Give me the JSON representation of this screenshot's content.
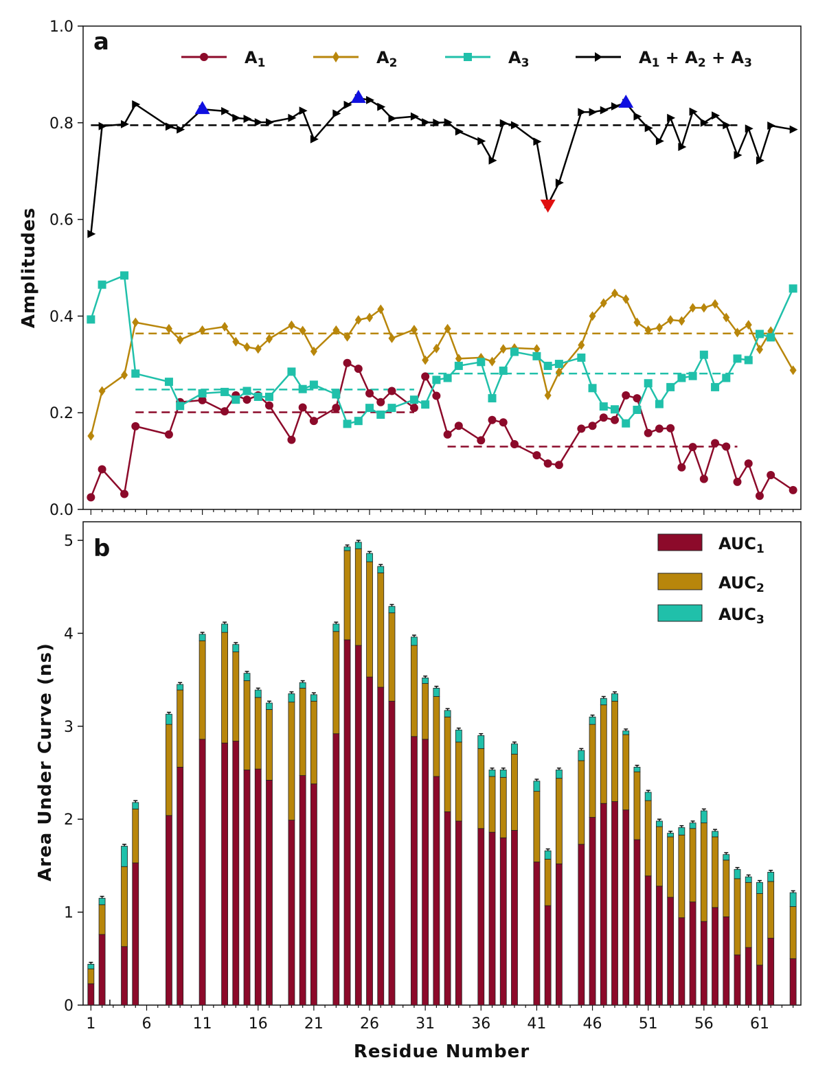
{
  "chart_data": [
    {
      "panel": "a",
      "type": "line",
      "ylabel": "Amplitudes",
      "ylim": [
        0.0,
        1.0
      ],
      "yticks": [
        "0.0",
        "0.2",
        "0.4",
        "0.6",
        "0.8",
        "1.0"
      ],
      "legend_position": "top",
      "legend_labels": [
        "A",
        "A",
        "A",
        "A + A + A"
      ],
      "legend_subscripts": [
        "1",
        "2",
        "3"
      ],
      "x": [
        1,
        2,
        4,
        5,
        8,
        9,
        11,
        13,
        14,
        15,
        16,
        17,
        19,
        20,
        21,
        23,
        24,
        25,
        26,
        27,
        28,
        30,
        31,
        32,
        33,
        34,
        36,
        37,
        38,
        39,
        41,
        42,
        43,
        45,
        46,
        47,
        48,
        49,
        50,
        51,
        52,
        53,
        54,
        55,
        56,
        57,
        58,
        59,
        60,
        61,
        62,
        64
      ],
      "series": [
        {
          "name": "A1",
          "color": "#8c0a2a",
          "marker": "circle",
          "values": [
            0.025,
            0.083,
            0.032,
            0.172,
            0.155,
            0.222,
            0.226,
            0.203,
            0.236,
            0.227,
            0.236,
            0.215,
            0.144,
            0.211,
            0.183,
            0.21,
            0.303,
            0.291,
            0.24,
            0.222,
            0.245,
            0.21,
            0.275,
            0.235,
            0.155,
            0.173,
            0.143,
            0.185,
            0.18,
            0.135,
            0.112,
            0.095,
            0.092,
            0.167,
            0.173,
            0.19,
            0.185,
            0.236,
            0.23,
            0.158,
            0.167,
            0.168,
            0.087,
            0.129,
            0.063,
            0.137,
            0.13,
            0.057,
            0.095,
            0.028,
            0.071,
            0.04
          ]
        },
        {
          "name": "A2",
          "color": "#b8860b",
          "marker": "diamond",
          "values": [
            0.152,
            0.245,
            0.278,
            0.387,
            0.374,
            0.351,
            0.371,
            0.378,
            0.347,
            0.336,
            0.332,
            0.353,
            0.381,
            0.37,
            0.327,
            0.371,
            0.357,
            0.392,
            0.397,
            0.414,
            0.354,
            0.372,
            0.309,
            0.333,
            0.374,
            0.312,
            0.314,
            0.306,
            0.332,
            0.334,
            0.332,
            0.236,
            0.284,
            0.34,
            0.4,
            0.427,
            0.447,
            0.435,
            0.387,
            0.371,
            0.376,
            0.392,
            0.39,
            0.417,
            0.417,
            0.425,
            0.397,
            0.366,
            0.382,
            0.331,
            0.369,
            0.288
          ]
        },
        {
          "name": "A3",
          "color": "#20c0aa",
          "marker": "square",
          "values": [
            0.393,
            0.465,
            0.484,
            0.281,
            0.264,
            0.214,
            0.24,
            0.243,
            0.227,
            0.245,
            0.233,
            0.233,
            0.285,
            0.249,
            0.258,
            0.238,
            0.177,
            0.183,
            0.21,
            0.196,
            0.21,
            0.227,
            0.217,
            0.268,
            0.272,
            0.297,
            0.305,
            0.23,
            0.287,
            0.326,
            0.317,
            0.297,
            0.301,
            0.314,
            0.251,
            0.213,
            0.207,
            0.178,
            0.206,
            0.261,
            0.218,
            0.253,
            0.272,
            0.276,
            0.32,
            0.253,
            0.272,
            0.312,
            0.309,
            0.363,
            0.356,
            0.457
          ]
        },
        {
          "name": "A1 + A2 + A3",
          "color": "#000000",
          "marker": "triangle-right",
          "values": [
            0.57,
            0.793,
            0.797,
            0.838,
            0.792,
            0.786,
            0.828,
            0.824,
            0.81,
            0.808,
            0.801,
            0.801,
            0.81,
            0.825,
            0.766,
            0.819,
            0.837,
            0.851,
            0.847,
            0.833,
            0.809,
            0.813,
            0.801,
            0.8,
            0.801,
            0.782,
            0.762,
            0.722,
            0.799,
            0.795,
            0.761,
            0.631,
            0.676,
            0.822,
            0.822,
            0.826,
            0.834,
            0.841,
            0.813,
            0.789,
            0.762,
            0.81,
            0.75,
            0.823,
            0.8,
            0.815,
            0.795,
            0.733,
            0.788,
            0.722,
            0.794,
            0.786
          ]
        }
      ],
      "mean_lines": [
        {
          "series": "A1+A2+A3",
          "color": "#000000",
          "y": 0.795,
          "from": 1,
          "to": 59
        },
        {
          "series": "A2",
          "color": "#b8860b",
          "y": 0.364,
          "from": 5,
          "to": 64
        },
        {
          "series": "A3",
          "color": "#20c0aa",
          "y": 0.248,
          "from": 5,
          "to": 30
        },
        {
          "series": "A3",
          "color": "#20c0aa",
          "y": 0.281,
          "from": 31,
          "to": 59
        },
        {
          "series": "A1",
          "color": "#8c0a2a",
          "y": 0.201,
          "from": 5,
          "to": 30
        },
        {
          "series": "A1",
          "color": "#8c0a2a",
          "y": 0.13,
          "from": 33,
          "to": 59
        }
      ],
      "highlights": [
        {
          "x": 11,
          "y": 0.828,
          "shape": "triangle-up",
          "color": "#1010e0"
        },
        {
          "x": 25,
          "y": 0.851,
          "shape": "triangle-up",
          "color": "#1010e0"
        },
        {
          "x": 49,
          "y": 0.841,
          "shape": "triangle-up",
          "color": "#1010e0"
        },
        {
          "x": 42,
          "y": 0.631,
          "shape": "triangle-down",
          "color": "#e01010"
        }
      ]
    },
    {
      "panel": "b",
      "type": "bar",
      "stacked": true,
      "xlabel": "Residue  Number",
      "ylabel": "Area  Under  Curve  (ns)",
      "ylim": [
        0,
        5.2
      ],
      "yticks": [
        "0",
        "1",
        "2",
        "3",
        "4",
        "5"
      ],
      "xticks": [
        "1",
        "6",
        "11",
        "16",
        "21",
        "26",
        "31",
        "36",
        "41",
        "46",
        "51",
        "56",
        "61"
      ],
      "xlim": [
        0.3,
        64.7
      ],
      "legend_position": "top-right",
      "legend_labels": [
        "AUC",
        "AUC",
        "AUC"
      ],
      "legend_subscripts": [
        "1",
        "2",
        "3"
      ],
      "x": [
        1,
        2,
        4,
        5,
        8,
        9,
        11,
        13,
        14,
        15,
        16,
        17,
        19,
        20,
        21,
        23,
        24,
        25,
        26,
        27,
        28,
        30,
        31,
        32,
        33,
        34,
        36,
        37,
        38,
        39,
        41,
        42,
        43,
        45,
        46,
        47,
        48,
        49,
        50,
        51,
        52,
        53,
        54,
        55,
        56,
        57,
        58,
        59,
        60,
        61,
        62,
        64
      ],
      "series": [
        {
          "name": "AUC1",
          "color": "#8c0a2a",
          "values": [
            0.23,
            0.76,
            0.63,
            1.53,
            2.04,
            2.56,
            2.86,
            2.82,
            2.84,
            2.53,
            2.54,
            2.42,
            1.99,
            2.47,
            2.38,
            2.92,
            3.93,
            3.87,
            3.53,
            3.42,
            3.27,
            2.89,
            2.86,
            2.46,
            2.08,
            1.98,
            1.9,
            1.86,
            1.8,
            1.88,
            1.54,
            1.07,
            1.52,
            1.73,
            2.02,
            2.17,
            2.19,
            2.1,
            1.78,
            1.39,
            1.28,
            1.16,
            0.94,
            1.11,
            0.9,
            1.05,
            0.95,
            0.54,
            0.62,
            0.43,
            0.72,
            0.5
          ]
        },
        {
          "name": "AUC2",
          "color": "#b8860b",
          "values": [
            0.16,
            0.32,
            0.86,
            0.58,
            0.98,
            0.83,
            1.06,
            1.19,
            0.96,
            0.96,
            0.77,
            0.76,
            1.27,
            0.94,
            0.89,
            1.1,
            0.96,
            1.04,
            1.24,
            1.23,
            0.95,
            0.98,
            0.6,
            0.86,
            1.02,
            0.85,
            0.86,
            0.6,
            0.65,
            0.82,
            0.76,
            0.5,
            0.92,
            0.9,
            1.0,
            1.06,
            1.08,
            0.81,
            0.73,
            0.81,
            0.64,
            0.65,
            0.89,
            0.79,
            1.06,
            0.76,
            0.61,
            0.82,
            0.7,
            0.77,
            0.61,
            0.56
          ]
        },
        {
          "name": "AUC3",
          "color": "#20c0aa",
          "values": [
            0.05,
            0.07,
            0.22,
            0.07,
            0.11,
            0.06,
            0.07,
            0.09,
            0.08,
            0.08,
            0.08,
            0.07,
            0.09,
            0.06,
            0.07,
            0.08,
            0.04,
            0.07,
            0.09,
            0.07,
            0.07,
            0.09,
            0.06,
            0.09,
            0.07,
            0.13,
            0.14,
            0.07,
            0.08,
            0.11,
            0.11,
            0.09,
            0.09,
            0.11,
            0.08,
            0.07,
            0.08,
            0.04,
            0.05,
            0.09,
            0.06,
            0.04,
            0.08,
            0.06,
            0.13,
            0.06,
            0.06,
            0.1,
            0.06,
            0.12,
            0.1,
            0.15
          ]
        }
      ],
      "error_bars": [
        0.02,
        0.02,
        0.02,
        0.02,
        0.02,
        0.02,
        0.02,
        0.02,
        0.02,
        0.02,
        0.02,
        0.02,
        0.02,
        0.02,
        0.02,
        0.02,
        0.02,
        0.02,
        0.02,
        0.02,
        0.02,
        0.02,
        0.02,
        0.02,
        0.02,
        0.02,
        0.02,
        0.02,
        0.02,
        0.02,
        0.02,
        0.02,
        0.02,
        0.02,
        0.02,
        0.02,
        0.02,
        0.02,
        0.02,
        0.02,
        0.02,
        0.02,
        0.02,
        0.02,
        0.02,
        0.02,
        0.02,
        0.02,
        0.02,
        0.02,
        0.02,
        0.02
      ]
    }
  ]
}
